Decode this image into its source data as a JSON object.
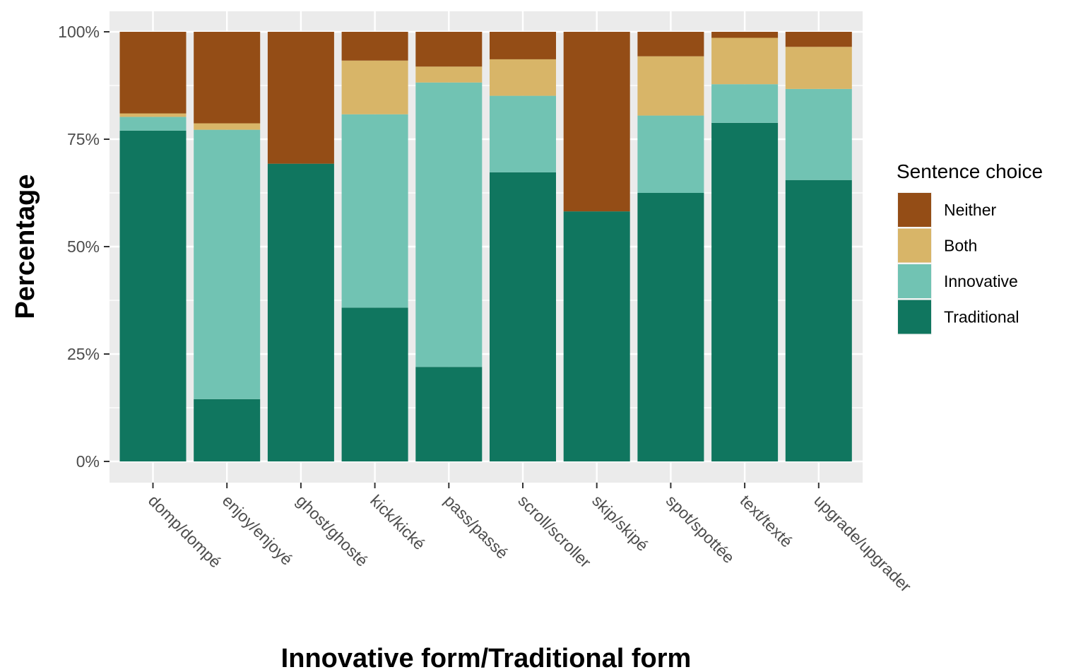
{
  "chart_data": {
    "type": "bar",
    "stacked": true,
    "normalized": true,
    "xlabel": "Innovative form/Traditional form",
    "ylabel": "Percentage",
    "ylim": [
      0,
      1
    ],
    "yticks": [
      0,
      0.25,
      0.5,
      0.75,
      1.0
    ],
    "ytick_labels": [
      "0%",
      "25%",
      "50%",
      "75%",
      "100%"
    ],
    "grid": true,
    "legend": {
      "title": "Sentence choice",
      "position": "right"
    },
    "categories": [
      "domp/dompé",
      "enjoy/enjoyé",
      "ghost/ghosté",
      "kick/kické",
      "pass/passé",
      "scroll/scroller",
      "skip/skipé",
      "spot/spottée",
      "text/texté",
      "upgrade/upgrader"
    ],
    "series": [
      {
        "name": "Traditional",
        "color": "#10765f",
        "values": [
          0.77,
          0.145,
          0.693,
          0.358,
          0.22,
          0.673,
          0.582,
          0.625,
          0.788,
          0.655
        ]
      },
      {
        "name": "Innovative",
        "color": "#71c3b3",
        "values": [
          0.032,
          0.627,
          0.0,
          0.45,
          0.662,
          0.178,
          0.0,
          0.18,
          0.09,
          0.212
        ]
      },
      {
        "name": "Both",
        "color": "#d8b568",
        "values": [
          0.008,
          0.015,
          0.0,
          0.125,
          0.037,
          0.085,
          0.0,
          0.138,
          0.108,
          0.098
        ]
      },
      {
        "name": "Neither",
        "color": "#944d16",
        "values": [
          0.19,
          0.213,
          0.307,
          0.067,
          0.081,
          0.064,
          0.418,
          0.057,
          0.014,
          0.035
        ]
      }
    ],
    "legend_order": [
      "Neither",
      "Both",
      "Innovative",
      "Traditional"
    ]
  }
}
